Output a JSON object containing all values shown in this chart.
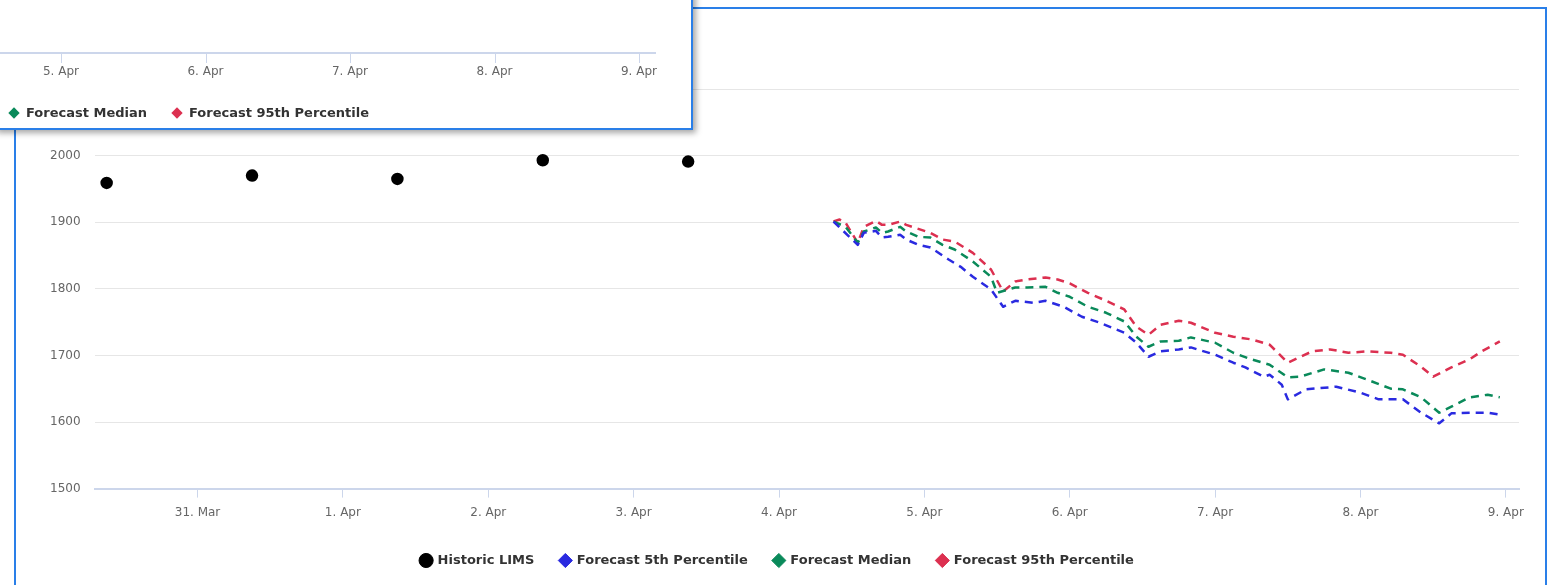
{
  "chart_data": [
    {
      "type": "line",
      "xlim": [
        "--03-30T07:00",
        "--04-09T02:10"
      ],
      "xticks": [
        {
          "value": "--03-31",
          "label": "31. Mar"
        },
        {
          "value": "--04-01",
          "label": "1. Apr"
        },
        {
          "value": "--04-02",
          "label": "2. Apr"
        },
        {
          "value": "--04-03",
          "label": "3. Apr"
        },
        {
          "value": "--04-04",
          "label": "4. Apr"
        },
        {
          "value": "--04-05",
          "label": "5. Apr"
        },
        {
          "value": "--04-06",
          "label": "6. Apr"
        },
        {
          "value": "--04-07",
          "label": "7. Apr"
        },
        {
          "value": "--04-08",
          "label": "8. Apr"
        },
        {
          "value": "--04-09",
          "label": "9. Apr"
        }
      ],
      "ylim": [
        1500,
        2100
      ],
      "yticks": [
        1500,
        1600,
        1700,
        1800,
        1900,
        2000,
        {
          "value": 2100,
          "label": null
        }
      ],
      "grid": "y",
      "legend": "bottom",
      "line_style": "dashed",
      "series": [
        {
          "name": "Historic LIMS",
          "type": "scatter",
          "marker": "circle",
          "color": "#000000",
          "x": [
            "--03-30T09:00",
            "--03-31T09:00",
            "--04-01T09:00",
            "--04-02T09:00",
            "--04-03T09:00"
          ],
          "values": [
            1959,
            1970,
            1965,
            1993,
            1991
          ]
        },
        {
          "name": "Forecast 5th Percentile",
          "color": "#2a2ae0",
          "x": [
            "--04-04T09:00",
            "--04-04T13:00",
            "--04-04T14:00",
            "--04-04T16:00",
            "--04-04T17:00",
            "--04-04T18:00",
            "--04-04T20:00",
            "--04-04T21:00",
            "--04-04T23:00",
            "--04-05T01:00",
            "--04-05T04:00",
            "--04-05T06:00",
            "--04-05T08:00",
            "--04-05T11:00",
            "--04-05T13:00",
            "--04-05T15:00",
            "--04-05T18:00",
            "--04-05T20:00",
            "--04-05T23:00",
            "--04-06T02:00",
            "--04-06T05:00",
            "--04-06T09:00",
            "--04-06T11:00",
            "--04-06T13:00",
            "--04-06T15:00",
            "--04-06T18:00",
            "--04-06T20:00",
            "--04-07T00:00",
            "--04-07T03:00",
            "--04-07T05:00",
            "--04-07T08:00",
            "--04-07T09:00",
            "--04-07T11:00",
            "--04-07T12:00",
            "--04-07T15:00",
            "--04-07T20:00",
            "--04-08T00:00",
            "--04-08T03:00",
            "--04-08T07:00",
            "--04-08T10:00",
            "--04-08T13:00",
            "--04-08T15:00",
            "--04-08T19:00",
            "--04-08T21:00",
            "--04-08T23:00"
          ],
          "values": [
            1901,
            1866,
            1884,
            1887,
            1877,
            1878,
            1881,
            1874,
            1866,
            1862,
            1844,
            1833,
            1818,
            1799,
            1773,
            1782,
            1779,
            1782,
            1773,
            1758,
            1749,
            1734,
            1719,
            1698,
            1706,
            1709,
            1712,
            1701,
            1689,
            1682,
            1668,
            1671,
            1656,
            1634,
            1649,
            1653,
            1644,
            1634,
            1634,
            1614,
            1598,
            1613,
            1614,
            1614,
            1611
          ]
        },
        {
          "name": "Forecast Median",
          "color": "#0a8a5a",
          "x": [
            "--04-04T09:00",
            "--04-04T11:00",
            "--04-04T13:00",
            "--04-04T14:00",
            "--04-04T16:00",
            "--04-04T17:00",
            "--04-04T18:00",
            "--04-04T20:00",
            "--04-04T21:00",
            "--04-04T23:00",
            "--04-05T01:00",
            "--04-05T03:00",
            "--04-05T05:00",
            "--04-05T08:00",
            "--04-05T11:00",
            "--04-05T12:00",
            "--04-05T15:00",
            "--04-05T17:00",
            "--04-05T20:00",
            "--04-05T22:00",
            "--04-06T00:00",
            "--04-06T03:00",
            "--04-06T06:00",
            "--04-06T09:00",
            "--04-06T11:00",
            "--04-06T13:00",
            "--04-06T15:00",
            "--04-06T18:00",
            "--04-06T20:00",
            "--04-07T00:00",
            "--04-07T03:00",
            "--04-07T06:00",
            "--04-07T09:00",
            "--04-07T12:00",
            "--04-07T14:00",
            "--04-07T18:00",
            "--04-07T22:00",
            "--04-08T01:00",
            "--04-08T05:00",
            "--04-08T07:00",
            "--04-08T10:00",
            "--04-08T13:00",
            "--04-08T15:00",
            "--04-08T18:00",
            "--04-08T21:00",
            "--04-08T23:00"
          ],
          "values": [
            1901,
            1893,
            1869,
            1886,
            1892,
            1884,
            1886,
            1893,
            1886,
            1878,
            1877,
            1866,
            1859,
            1841,
            1818,
            1794,
            1802,
            1802,
            1803,
            1794,
            1788,
            1773,
            1764,
            1751,
            1728,
            1713,
            1721,
            1722,
            1727,
            1719,
            1704,
            1694,
            1686,
            1667,
            1668,
            1679,
            1674,
            1664,
            1650,
            1649,
            1637,
            1614,
            1623,
            1637,
            1641,
            1637
          ]
        },
        {
          "name": "Forecast 95th Percentile",
          "color": "#dc3050",
          "x": [
            "--04-04T09:00",
            "--04-04T10:00",
            "--04-04T11:00",
            "--04-04T13:00",
            "--04-04T14:00",
            "--04-04T16:00",
            "--04-04T17:00",
            "--04-04T18:00",
            "--04-04T20:00",
            "--04-04T21:00",
            "--04-04T23:00",
            "--04-05T01:00",
            "--04-05T03:00",
            "--04-05T05:00",
            "--04-05T08:00",
            "--04-05T11:00",
            "--04-05T13:00",
            "--04-05T15:00",
            "--04-05T17:00",
            "--04-05T20:00",
            "--04-05T22:00",
            "--04-06T00:00",
            "--04-06T03:00",
            "--04-06T06:00",
            "--04-06T09:00",
            "--04-06T11:00",
            "--04-06T13:00",
            "--04-06T15:00",
            "--04-06T18:00",
            "--04-06T20:00",
            "--04-07T00:00",
            "--04-07T03:00",
            "--04-07T06:00",
            "--04-07T09:00",
            "--04-07T12:00",
            "--04-07T16:00",
            "--04-07T19:00",
            "--04-07T22:00",
            "--04-08T01:00",
            "--04-08T05:00",
            "--04-08T07:00",
            "--04-08T10:00",
            "--04-08T12:00",
            "--04-08T15:00",
            "--04-08T18:00",
            "--04-08T20:00",
            "--04-08T23:00"
          ],
          "values": [
            1901,
            1904,
            1899,
            1869,
            1893,
            1902,
            1896,
            1896,
            1901,
            1896,
            1890,
            1884,
            1874,
            1871,
            1854,
            1829,
            1796,
            1811,
            1814,
            1817,
            1814,
            1808,
            1794,
            1782,
            1769,
            1743,
            1731,
            1746,
            1752,
            1749,
            1734,
            1728,
            1724,
            1716,
            1689,
            1706,
            1709,
            1704,
            1706,
            1704,
            1701,
            1683,
            1668,
            1682,
            1694,
            1706,
            1721
          ]
        }
      ]
    },
    {
      "type": "other",
      "annotations": [
        "5. Apr",
        "6. Apr",
        "7. Apr",
        "8. Apr",
        "9. Apr",
        "Forecast Median",
        "Forecast 95th Percentile"
      ]
    }
  ]
}
